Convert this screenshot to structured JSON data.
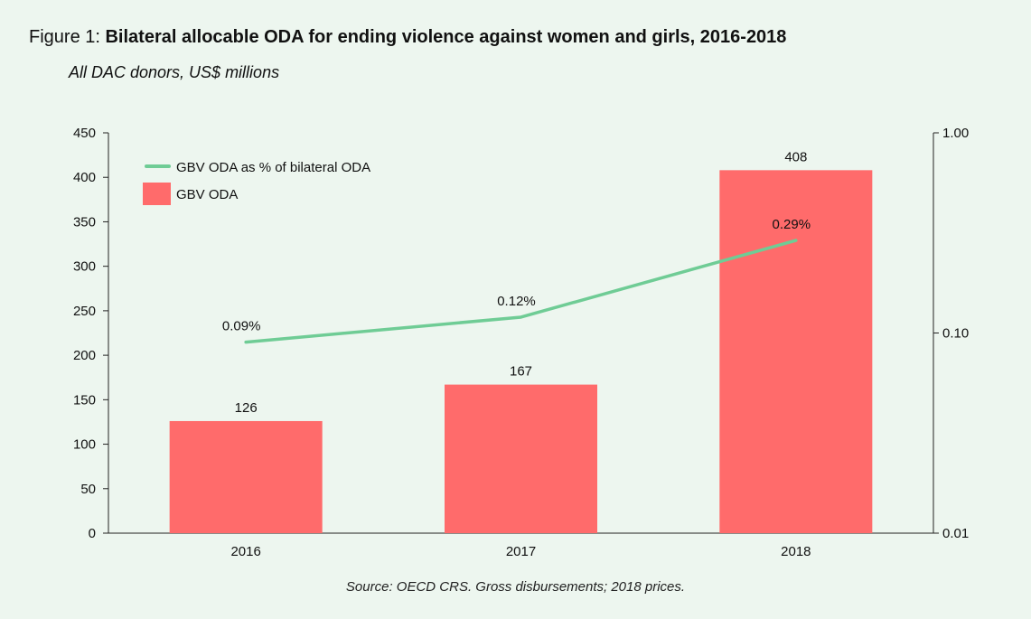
{
  "figure": {
    "prefix": "Figure 1: ",
    "title": "Bilateral allocable ODA for ending violence against women and girls, 2016-2018",
    "subtitle": "All DAC donors, US$ millions",
    "source": "Source: OECD CRS. Gross disbursements; 2018 prices."
  },
  "chart_data": {
    "type": "bar",
    "title": "Bilateral allocable ODA for ending violence against women and girls, 2016-2018",
    "subtitle": "All DAC donors, US$ millions",
    "categories": [
      "2016",
      "2017",
      "2018"
    ],
    "series": [
      {
        "name": "GBV ODA",
        "type": "bar",
        "axis": "left",
        "color": "#ff6b6b",
        "values": [
          126,
          167,
          408
        ],
        "labels": [
          "126",
          "167",
          "408"
        ]
      },
      {
        "name": "GBV ODA as % of bilateral ODA",
        "type": "line",
        "axis": "right",
        "color": "#6fcc95",
        "values": [
          0.09,
          0.12,
          0.29
        ],
        "labels": [
          "0.09%",
          "0.12%",
          "0.29%"
        ]
      }
    ],
    "y_left": {
      "range": [
        0,
        450
      ],
      "ticks": [
        0,
        50,
        100,
        150,
        200,
        250,
        300,
        350,
        400,
        450
      ],
      "tick_labels": [
        "0",
        "50",
        "100",
        "150",
        "200",
        "250",
        "300",
        "350",
        "400",
        "450"
      ]
    },
    "y_right": {
      "scale": "log",
      "range": [
        0.01,
        1.0
      ],
      "ticks": [
        0.01,
        0.1,
        1.0
      ],
      "tick_labels": [
        "0.01",
        "0.10",
        "1.00"
      ]
    },
    "legend": {
      "position": "top-left",
      "entries": [
        "GBV ODA as % of bilateral ODA",
        "GBV ODA"
      ]
    },
    "grid": false
  }
}
